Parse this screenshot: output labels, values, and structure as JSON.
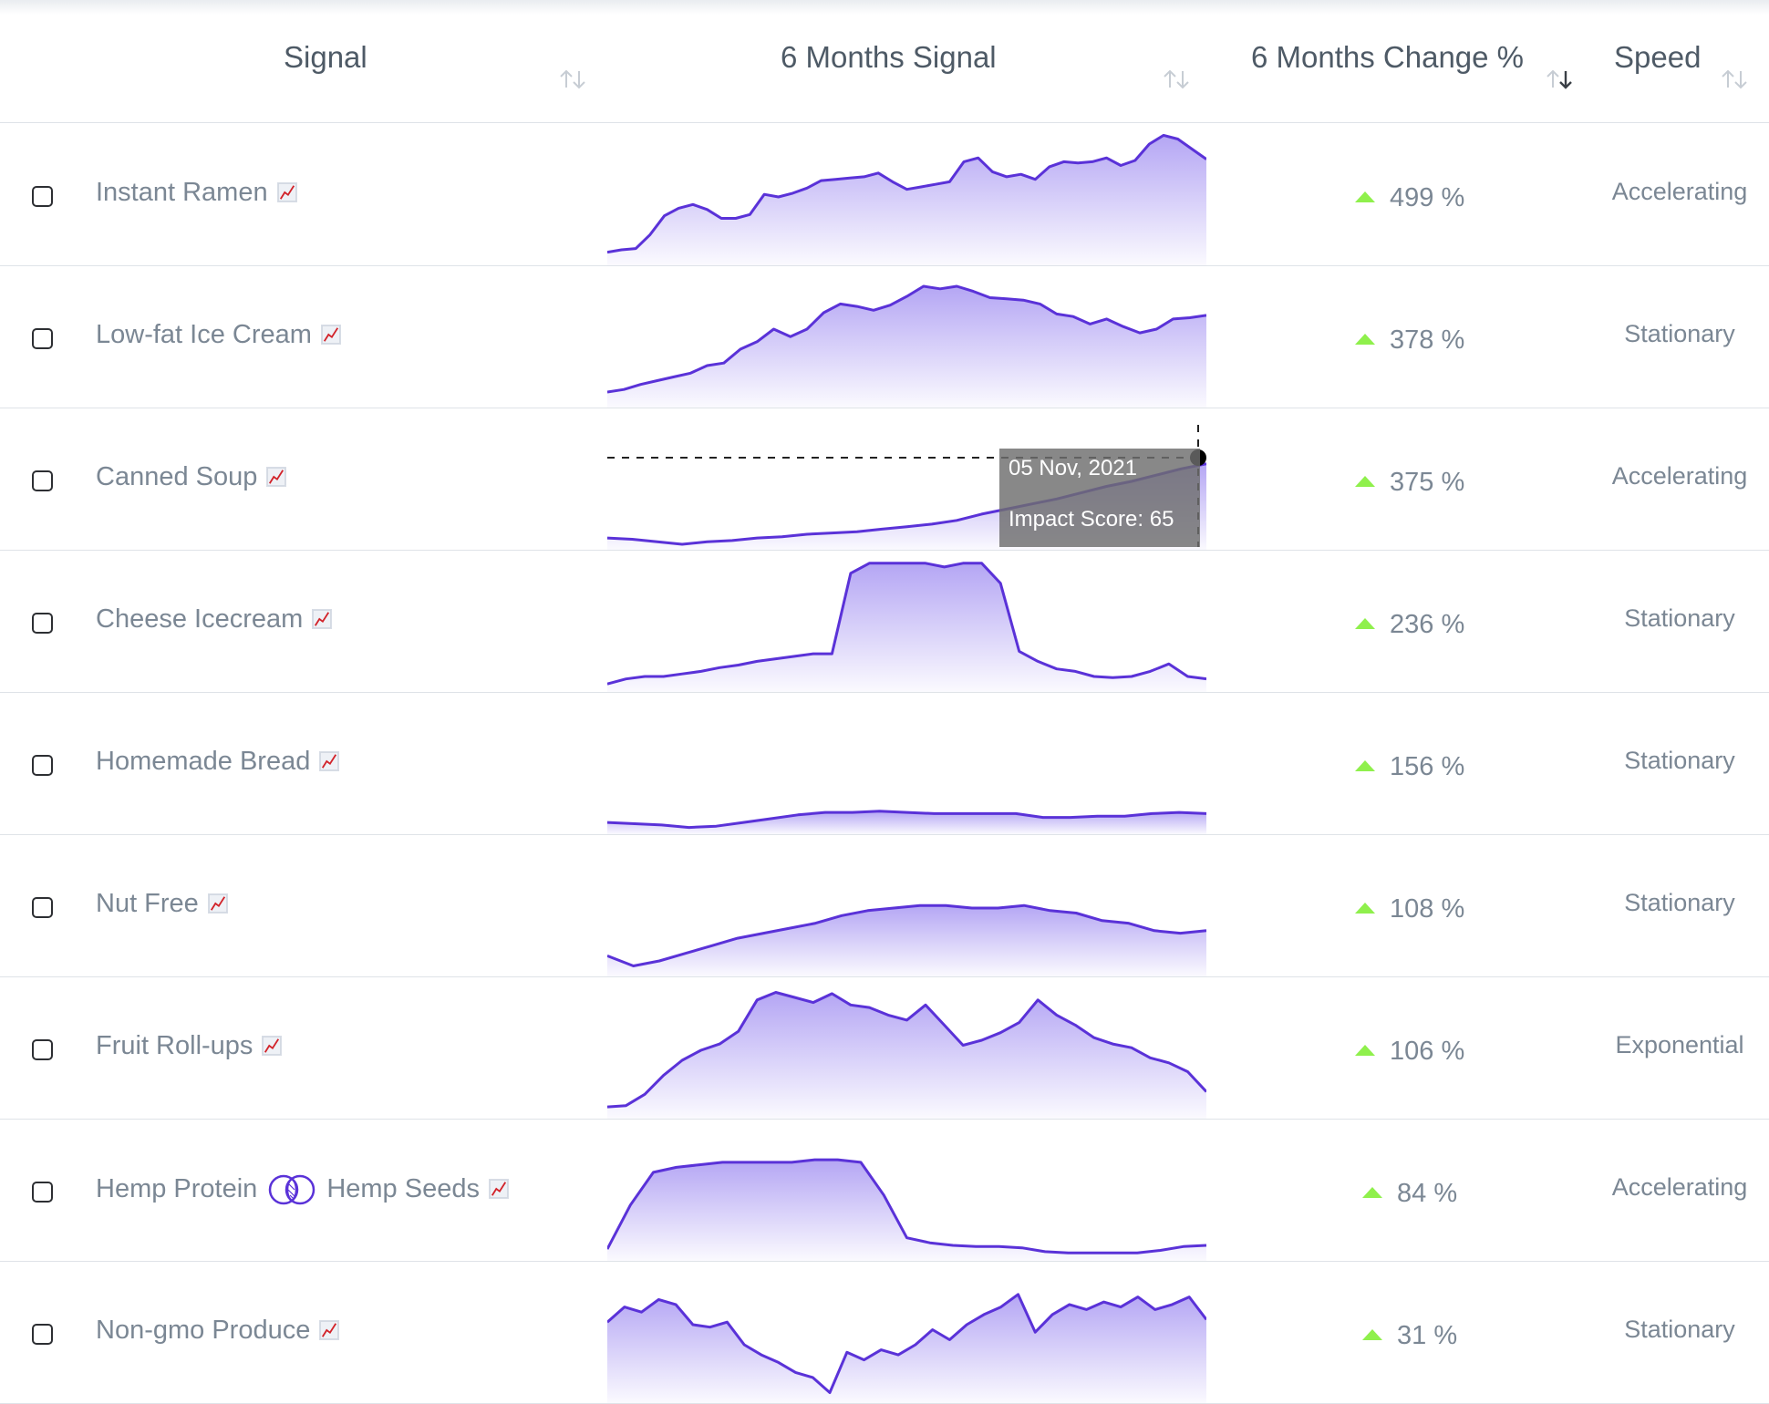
{
  "columns": {
    "signal": "Signal",
    "six_month_signal": "6 Months Signal",
    "six_month_change": "6 Months Change %",
    "speed": "Speed"
  },
  "colors": {
    "line": "#5a32d8",
    "fill_top": "#a796f2",
    "up_arrow": "#8ff04c"
  },
  "rows": [
    {
      "name": "Instant Ramen",
      "change": "499 %",
      "speed": "Accelerating",
      "series": [
        0.06,
        0.08,
        0.09,
        0.2,
        0.35,
        0.41,
        0.44,
        0.4,
        0.33,
        0.33,
        0.36,
        0.52,
        0.5,
        0.53,
        0.57,
        0.63,
        0.64,
        0.65,
        0.66,
        0.69,
        0.62,
        0.56,
        0.58,
        0.6,
        0.62,
        0.78,
        0.81,
        0.7,
        0.66,
        0.68,
        0.64,
        0.74,
        0.78,
        0.77,
        0.78,
        0.81,
        0.75,
        0.79,
        0.92,
        0.99,
        0.96,
        0.88,
        0.8
      ]
    },
    {
      "name": "Low-fat Ice Cream",
      "change": "378 %",
      "speed": "Stationary",
      "series": [
        0.08,
        0.1,
        0.14,
        0.17,
        0.2,
        0.23,
        0.29,
        0.31,
        0.42,
        0.48,
        0.58,
        0.52,
        0.58,
        0.71,
        0.78,
        0.76,
        0.73,
        0.77,
        0.84,
        0.92,
        0.9,
        0.92,
        0.88,
        0.83,
        0.82,
        0.81,
        0.78,
        0.7,
        0.68,
        0.62,
        0.66,
        0.6,
        0.55,
        0.58,
        0.66,
        0.67,
        0.69
      ]
    },
    {
      "name": "Canned Soup",
      "change": "375 %",
      "speed": "Accelerating",
      "series": [
        0.05,
        0.04,
        0.02,
        0.0,
        0.02,
        0.03,
        0.05,
        0.06,
        0.08,
        0.09,
        0.1,
        0.12,
        0.14,
        0.16,
        0.19,
        0.24,
        0.28,
        0.32,
        0.36,
        0.41,
        0.46,
        0.5,
        0.55,
        0.6,
        0.64
      ]
    },
    {
      "name": "Cheese Icecream",
      "change": "236 %",
      "speed": "Stationary",
      "series": [
        0.02,
        0.06,
        0.08,
        0.08,
        0.1,
        0.12,
        0.15,
        0.17,
        0.2,
        0.22,
        0.24,
        0.26,
        0.26,
        0.9,
        0.98,
        0.98,
        0.98,
        0.98,
        0.95,
        0.98,
        0.98,
        0.82,
        0.28,
        0.2,
        0.14,
        0.12,
        0.08,
        0.07,
        0.08,
        0.12,
        0.18,
        0.08,
        0.06
      ]
    },
    {
      "name": "Homemade Bread",
      "change": "156 %",
      "speed": "Stationary",
      "series": [
        0.05,
        0.04,
        0.03,
        0.01,
        0.02,
        0.05,
        0.08,
        0.11,
        0.13,
        0.13,
        0.14,
        0.13,
        0.12,
        0.12,
        0.12,
        0.12,
        0.09,
        0.09,
        0.1,
        0.1,
        0.12,
        0.13,
        0.12
      ]
    },
    {
      "name": "Nut Free",
      "change": "108 %",
      "speed": "Stationary",
      "series": [
        0.12,
        0.04,
        0.08,
        0.14,
        0.2,
        0.26,
        0.3,
        0.34,
        0.38,
        0.44,
        0.48,
        0.5,
        0.52,
        0.52,
        0.5,
        0.5,
        0.52,
        0.48,
        0.46,
        0.4,
        0.38,
        0.32,
        0.3,
        0.32
      ]
    },
    {
      "name": "Fruit Roll-ups",
      "change": "106 %",
      "speed": "Exponential",
      "series": [
        0.05,
        0.06,
        0.15,
        0.3,
        0.42,
        0.5,
        0.55,
        0.65,
        0.9,
        0.96,
        0.92,
        0.88,
        0.95,
        0.86,
        0.84,
        0.78,
        0.74,
        0.86,
        0.7,
        0.54,
        0.58,
        0.64,
        0.72,
        0.9,
        0.78,
        0.7,
        0.6,
        0.55,
        0.52,
        0.44,
        0.4,
        0.33,
        0.17
      ]
    },
    {
      "name": "Hemp Protein",
      "linked_name": "Hemp Seeds",
      "change": "84 %",
      "speed": "Accelerating",
      "series": [
        0.05,
        0.4,
        0.66,
        0.7,
        0.72,
        0.74,
        0.74,
        0.74,
        0.74,
        0.76,
        0.76,
        0.74,
        0.48,
        0.14,
        0.1,
        0.08,
        0.07,
        0.07,
        0.06,
        0.03,
        0.02,
        0.02,
        0.02,
        0.02,
        0.04,
        0.07,
        0.08
      ]
    },
    {
      "name": "Non-gmo Produce",
      "change": "31 %",
      "speed": "Stationary",
      "series": [
        0.6,
        0.72,
        0.68,
        0.78,
        0.74,
        0.58,
        0.56,
        0.6,
        0.42,
        0.34,
        0.28,
        0.2,
        0.16,
        0.04,
        0.36,
        0.3,
        0.38,
        0.34,
        0.42,
        0.54,
        0.46,
        0.58,
        0.66,
        0.72,
        0.82,
        0.52,
        0.66,
        0.74,
        0.7,
        0.76,
        0.72,
        0.8,
        0.7,
        0.74,
        0.8,
        0.62
      ]
    }
  ],
  "tooltip": {
    "date": "05 Nov, 2021",
    "score": "Impact Score: 65"
  }
}
